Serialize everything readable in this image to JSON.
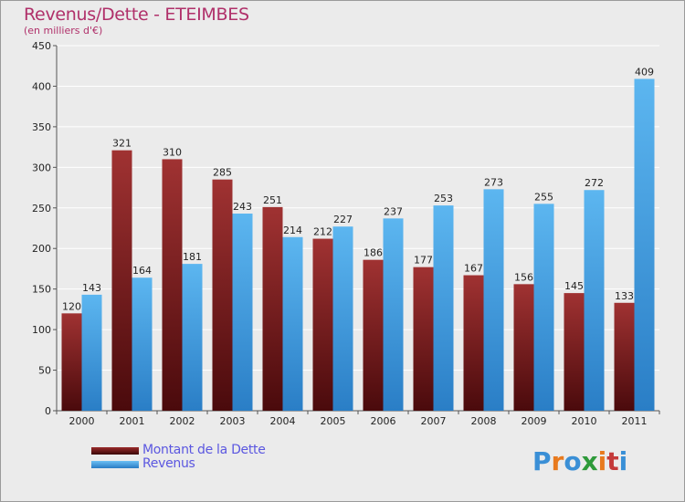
{
  "chart_data": {
    "type": "bar",
    "title": "Revenus/Dette - ETEIMBES",
    "subtitle": "(en milliers d'€)",
    "categories": [
      "2000",
      "2001",
      "2002",
      "2003",
      "2004",
      "2005",
      "2006",
      "2007",
      "2008",
      "2009",
      "2010",
      "2011"
    ],
    "series": [
      {
        "name": "Montant de la Dette",
        "color": "#7a1416",
        "values": [
          120,
          321,
          310,
          285,
          251,
          212,
          186,
          177,
          167,
          156,
          145,
          133
        ]
      },
      {
        "name": "Revenus",
        "color": "#4aa6e8",
        "values": [
          143,
          164,
          181,
          243,
          214,
          227,
          237,
          253,
          273,
          255,
          272,
          409
        ]
      }
    ],
    "ylim": [
      0,
      450
    ],
    "yticks": [
      0,
      50,
      100,
      150,
      200,
      250,
      300,
      350,
      400,
      450
    ],
    "grid": true,
    "legend_position": "bottom-left"
  },
  "logo": {
    "letters": [
      "P",
      "r",
      "o",
      "x",
      "i",
      "t",
      "i"
    ],
    "colors": [
      "#3a8fd6",
      "#e87a1e",
      "#3a8fd6",
      "#2e9a3a",
      "#e87a1e",
      "#c43a3a",
      "#3a8fd6"
    ]
  }
}
